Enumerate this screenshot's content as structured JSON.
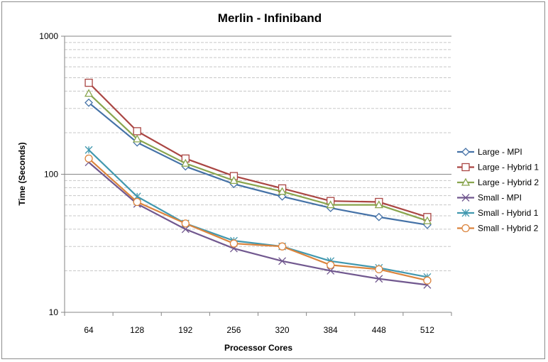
{
  "chart_data": {
    "type": "line",
    "title": "Merlin - Infiniband",
    "xlabel": "Processor Cores",
    "ylabel": "Time (Seconds)",
    "y_scale": "log",
    "ylim": [
      10,
      1000
    ],
    "y_ticks": [
      "10",
      "100",
      "1000"
    ],
    "categories": [
      "64",
      "128",
      "192",
      "256",
      "320",
      "384",
      "448",
      "512"
    ],
    "grid": "horizontal major and minor",
    "legend_position": "right",
    "series": [
      {
        "name": "Large - MPI",
        "color": "#4572A7",
        "marker": "diamond",
        "values": [
          330,
          170,
          114,
          85,
          69,
          57,
          49,
          43
        ]
      },
      {
        "name": "Large - Hybrid 1",
        "color": "#AA4643",
        "marker": "square",
        "values": [
          460,
          205,
          130,
          97,
          79,
          64,
          63,
          49
        ]
      },
      {
        "name": "Large - Hybrid 2",
        "color": "#89A54E",
        "marker": "triangle",
        "values": [
          385,
          180,
          120,
          90,
          75,
          60,
          60,
          46
        ]
      },
      {
        "name": "Small - MPI",
        "color": "#71588F",
        "marker": "x",
        "values": [
          122,
          61,
          40,
          29,
          23.5,
          20,
          17.5,
          15.8
        ]
      },
      {
        "name": "Small - Hybrid 1",
        "color": "#4198AF",
        "marker": "star",
        "values": [
          150,
          69,
          44,
          33,
          30,
          23.5,
          21,
          18
        ]
      },
      {
        "name": "Small - Hybrid 2",
        "color": "#DB843D",
        "marker": "circle",
        "values": [
          130,
          63,
          44,
          31.5,
          30,
          22,
          20.5,
          17
        ]
      }
    ]
  }
}
